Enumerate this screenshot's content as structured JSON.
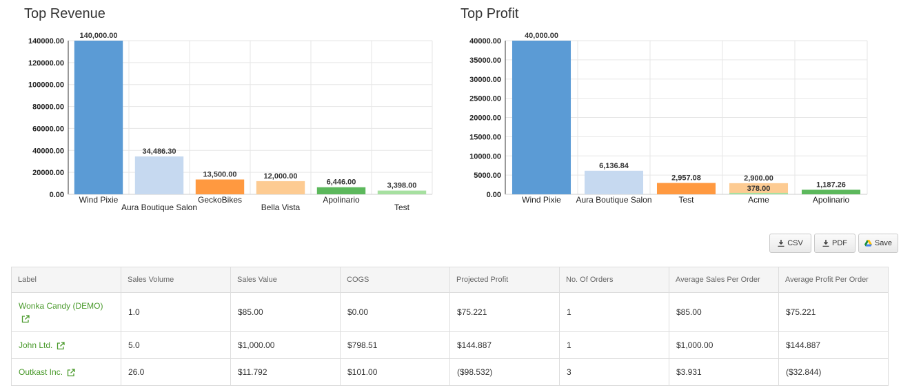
{
  "chart_data": [
    {
      "type": "bar",
      "title": "Top Revenue",
      "categories": [
        "Wind Pixie",
        "Aura Boutique Salon",
        "GeckoBikes",
        "Bella Vista",
        "Apolinario",
        "Test"
      ],
      "values": [
        140000,
        34486.3,
        13500,
        12000,
        6446,
        3398
      ],
      "value_labels": [
        "140,000.00",
        "34,486.30",
        "13,500.00",
        "12,000.00",
        "6,446.00",
        "3,398.00"
      ],
      "yticks": [
        "0.00",
        "20000.00",
        "40000.00",
        "60000.00",
        "80000.00",
        "100000.00",
        "120000.00",
        "140000.00"
      ],
      "ytick_values": [
        0,
        20000,
        40000,
        60000,
        80000,
        100000,
        120000,
        140000
      ],
      "ylim": [
        0,
        140000
      ],
      "colors": [
        "#5b9bd5",
        "#c6d9f0",
        "#ff9940",
        "#fdcb92",
        "#5cb85c",
        "#a6e0a0"
      ],
      "grid": true
    },
    {
      "type": "bar",
      "title": "Top Profit",
      "categories": [
        "Wind Pixie",
        "Aura Boutique Salon",
        "Test",
        "Acme",
        "Apolinario"
      ],
      "values": [
        40000,
        6136.84,
        2957.08,
        2900,
        1187.26
      ],
      "overlay": {
        "category": "Acme",
        "value": 378,
        "label": "378.00",
        "color": "#a6e0a0"
      },
      "value_labels": [
        "40,000.00",
        "6,136.84",
        "2,957.08",
        "2,900.00",
        "1,187.26"
      ],
      "yticks": [
        "0.00",
        "5000.00",
        "10000.00",
        "15000.00",
        "20000.00",
        "25000.00",
        "30000.00",
        "35000.00",
        "40000.00"
      ],
      "ytick_values": [
        0,
        5000,
        10000,
        15000,
        20000,
        25000,
        30000,
        35000,
        40000
      ],
      "ylim": [
        0,
        40000
      ],
      "colors": [
        "#5b9bd5",
        "#c6d9f0",
        "#ff9940",
        "#fdcb92",
        "#5cb85c"
      ],
      "grid": true
    }
  ],
  "toolbar": {
    "csv_label": "CSV",
    "pdf_label": "PDF",
    "save_label": "Save",
    "save_icon": "google-drive-icon"
  },
  "table": {
    "headers": [
      "Label",
      "Sales Volume",
      "Sales Value",
      "COGS",
      "Projected Profit",
      "No. Of Orders",
      "Average Sales Per Order",
      "Average Profit Per Order"
    ],
    "rows": [
      [
        "Wonka Candy (DEMO)",
        "1.0",
        "$85.00",
        "$0.00",
        "$75.221",
        "1",
        "$85.00",
        "$75.221"
      ],
      [
        "John Ltd.",
        "5.0",
        "$1,000.00",
        "$798.51",
        "$144.887",
        "1",
        "$1,000.00",
        "$144.887"
      ],
      [
        "Outkast Inc.",
        "26.0",
        "$11.792",
        "$101.00",
        "($98.532)",
        "3",
        "$3.931",
        "($32.844)"
      ]
    ],
    "link_color": "#4a9a2c"
  }
}
